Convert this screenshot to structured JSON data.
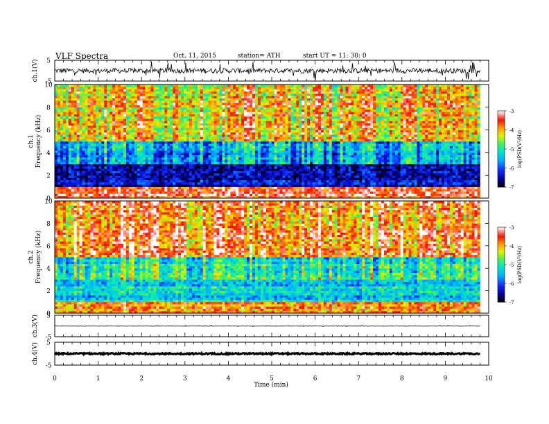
{
  "header": {
    "title": "VLF  Spectra",
    "date": "Oct. 11, 2015",
    "station": "station= ATH",
    "start": "start  UT  =   11: 30: 0"
  },
  "chart_data": [
    {
      "type": "line",
      "panel": "ch1-waveform",
      "ylabel": "ch.1(V)",
      "ylim": [
        -5,
        5
      ],
      "y_ticks": [
        "5",
        "-5"
      ],
      "x_range_min": [
        0,
        9.8
      ],
      "description_of_values": "noisy signal centred near 0 V with spikes reaching about ±4 V",
      "baseline": 0,
      "amplitude": 1.2,
      "spike_max": 4.5
    },
    {
      "type": "heatmap",
      "panel": "ch1-spectrogram",
      "ylabel_top": "ch.1",
      "ylabel": "Frequency  (kHz)",
      "ylim": [
        0,
        10
      ],
      "y_ticks": [
        "0",
        "2",
        "4",
        "6",
        "8",
        "10"
      ],
      "x_range_min": [
        0,
        9.8
      ],
      "colorbar": {
        "label": "log(PSD(V²/Hz)",
        "range": [
          -7,
          -3
        ],
        "ticks": [
          "-3",
          "-4",
          "-5",
          "-6",
          "-7"
        ]
      },
      "bands_khz": [
        {
          "from": 0,
          "to": 1,
          "level": -3.5
        },
        {
          "from": 1,
          "to": 3,
          "level": -6.3
        },
        {
          "from": 3,
          "to": 5,
          "level": -5.5
        },
        {
          "from": 5,
          "to": 10,
          "level": -4.0
        }
      ]
    },
    {
      "type": "heatmap",
      "panel": "ch2-spectrogram",
      "ylabel_top": "ch.2",
      "ylabel": "Frequency  (kHz)",
      "ylim": [
        0,
        10
      ],
      "y_ticks": [
        "0",
        "2",
        "4",
        "6",
        "8",
        "10"
      ],
      "x_range_min": [
        0,
        9.8
      ],
      "colorbar": {
        "label": "log(PSD(V²/Hz)",
        "range": [
          -7,
          -3
        ],
        "ticks": [
          "-3",
          "-4",
          "-5",
          "-6",
          "-7"
        ]
      },
      "bands_khz": [
        {
          "from": 0,
          "to": 1,
          "level": -3.8
        },
        {
          "from": 1,
          "to": 3,
          "level": -5.3
        },
        {
          "from": 3,
          "to": 5,
          "level": -5.0
        },
        {
          "from": 5,
          "to": 10,
          "level": -3.6
        }
      ]
    },
    {
      "type": "line",
      "panel": "ch3-waveform",
      "ylabel": "ch.3(V)",
      "ylim": [
        -5,
        5
      ],
      "y_ticks": [
        "5",
        "-5"
      ],
      "x_range_min": [
        0,
        9.8
      ],
      "baseline": 0,
      "amplitude": 0.15,
      "spike_max": 0.4
    },
    {
      "type": "line",
      "panel": "ch4-waveform",
      "ylabel": "ch.4(V)",
      "ylim": [
        -5,
        5
      ],
      "y_ticks": [
        "5",
        "-5"
      ],
      "x_range_min": [
        0,
        9.8
      ],
      "baseline": 0,
      "amplitude": 0.3,
      "spike_max": 0.3,
      "xlabel": "Time  (min)",
      "x_ticks": [
        "0",
        "1",
        "2",
        "3",
        "4",
        "5",
        "6",
        "7",
        "8",
        "9",
        "10"
      ],
      "xlim": [
        0,
        10
      ]
    }
  ]
}
